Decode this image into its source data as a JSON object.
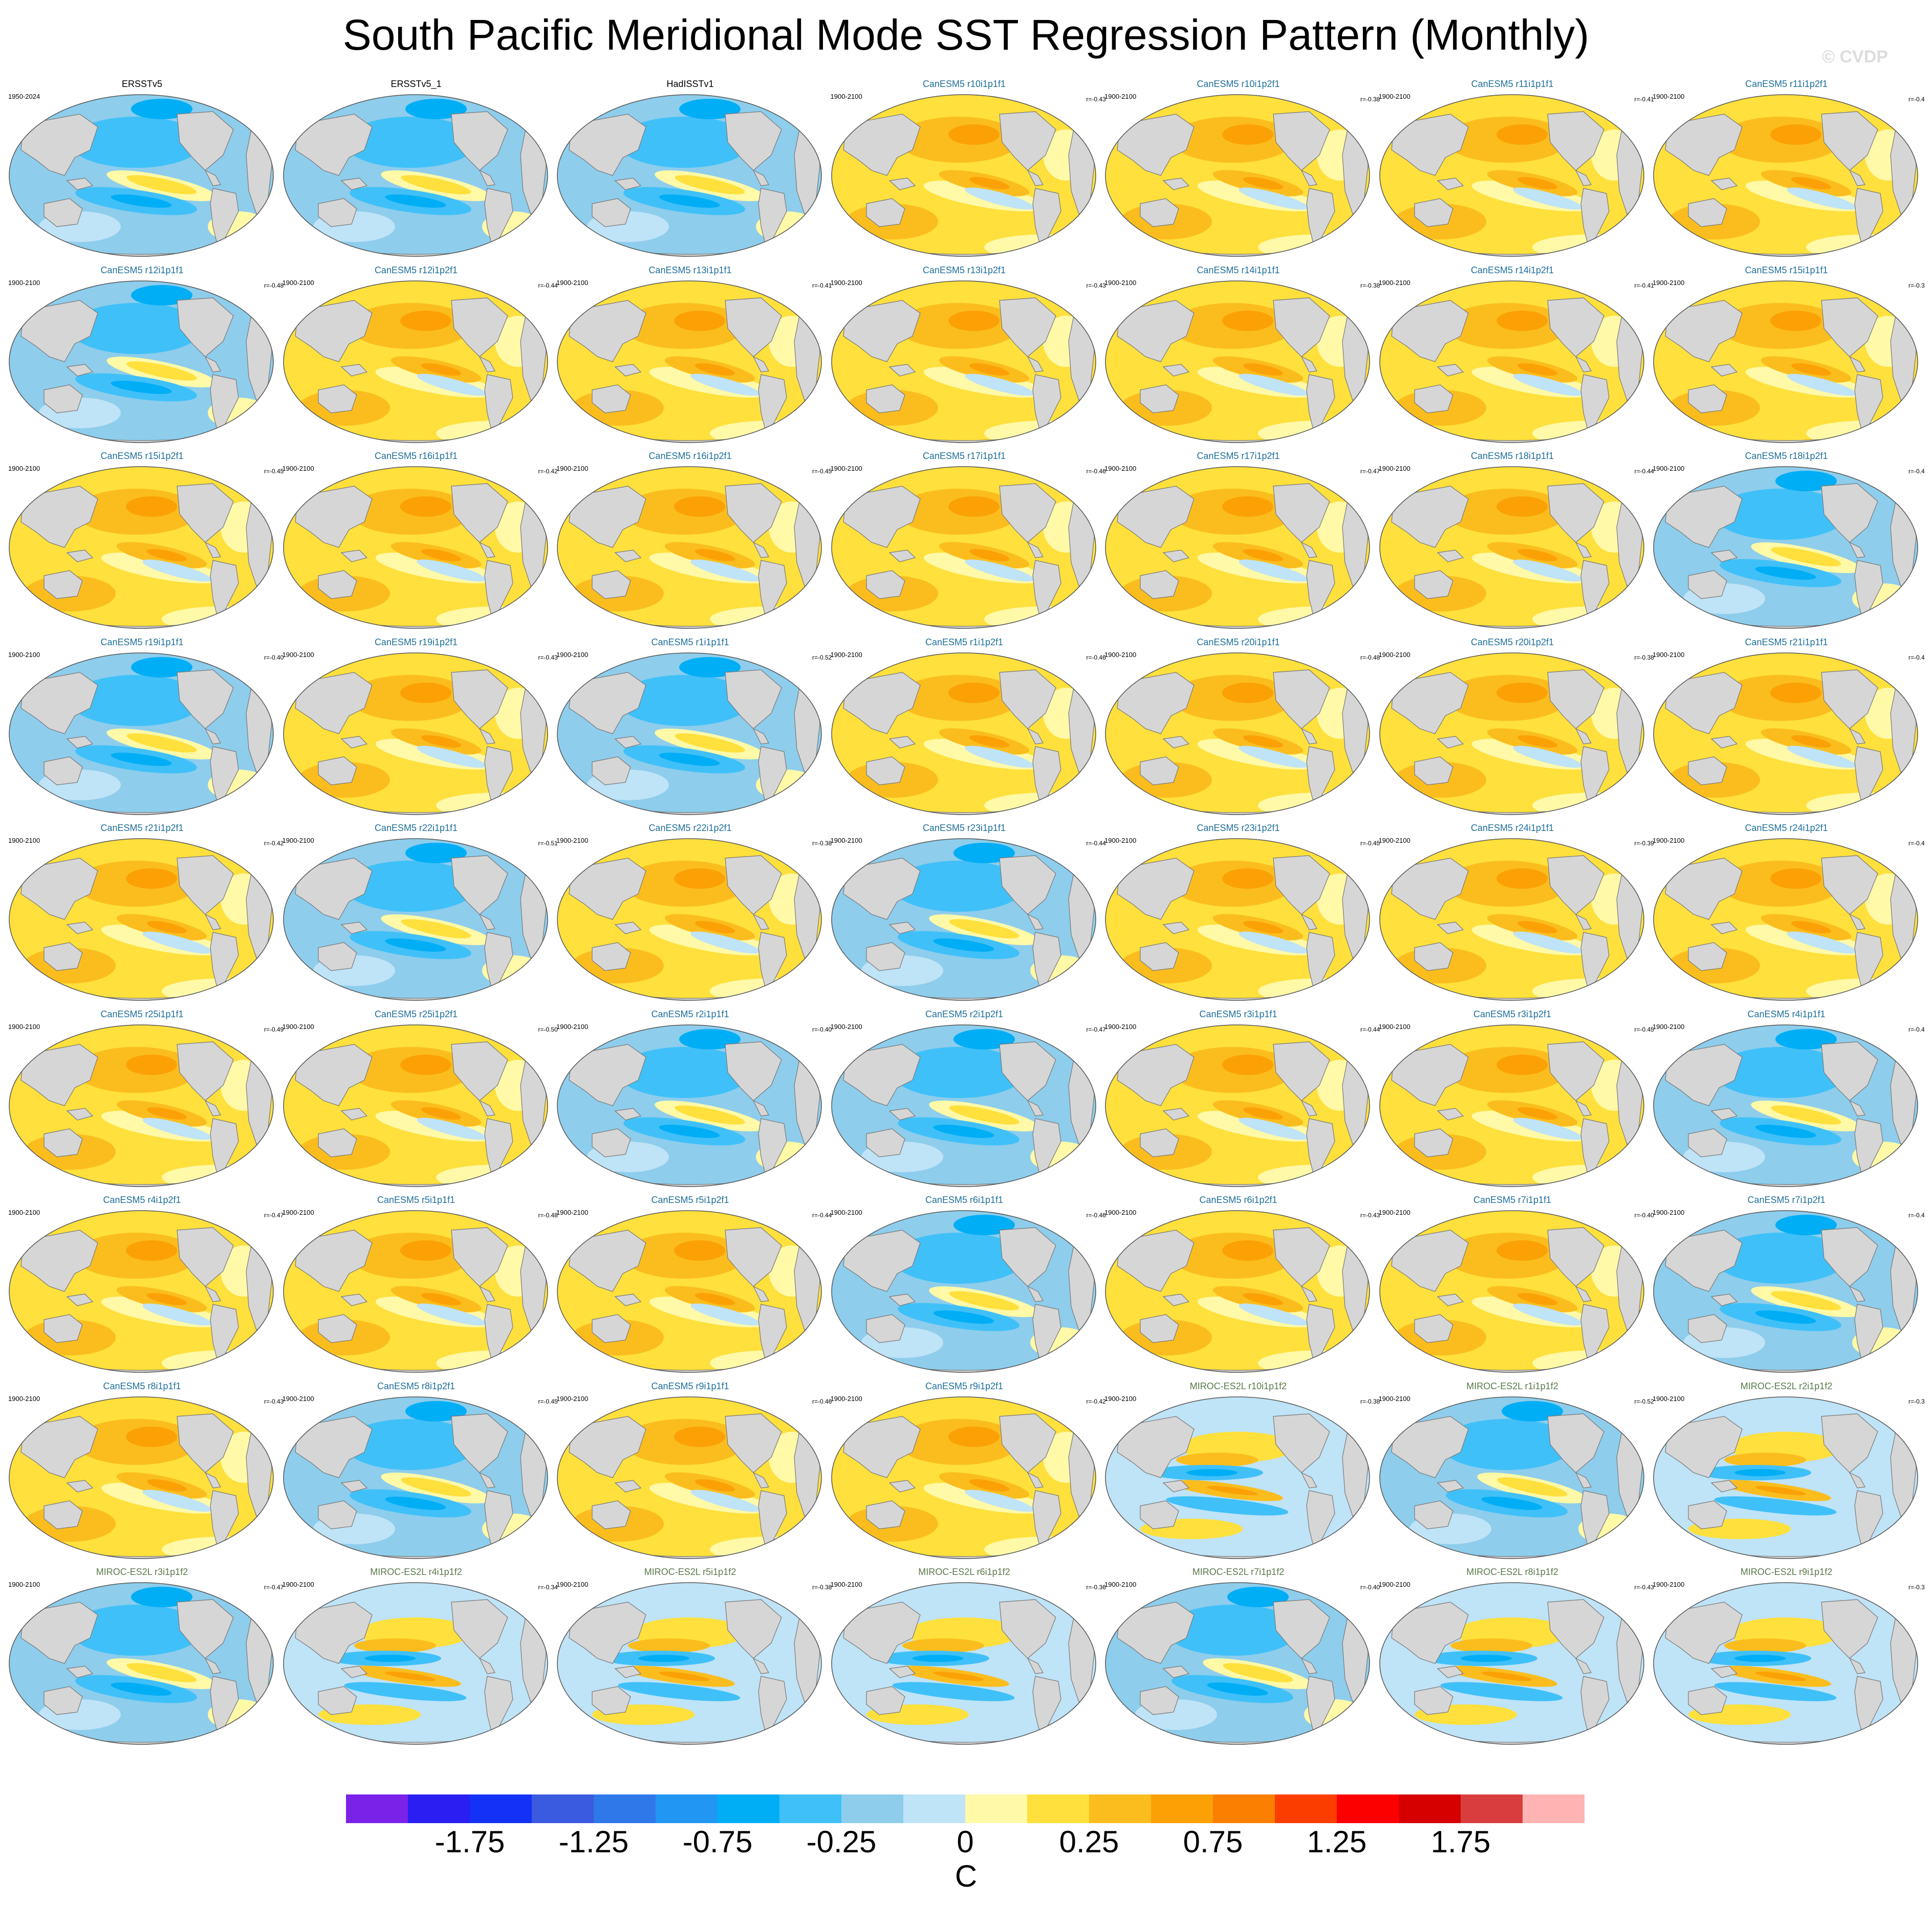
{
  "title": "South Pacific Meridional Mode SST Regression Pattern (Monthly)",
  "watermark": "© CVDP",
  "chart_data": {
    "type": "heatmap",
    "title": "South Pacific Meridional Mode SST Regression Pattern (Monthly)",
    "projection": "global map",
    "legend": "bottom",
    "colorbar": {
      "unit": "C",
      "tick_labels": [
        "-1.75",
        "-1.25",
        "-0.75",
        "-0.25",
        "0",
        "0.25",
        "0.75",
        "1.25",
        "1.75"
      ],
      "tick_values": [
        -1.75,
        -1.25,
        -0.75,
        -0.25,
        0,
        0.25,
        0.75,
        1.25,
        1.75
      ],
      "colors": [
        "#7b22e8",
        "#2a1ef0",
        "#1432f5",
        "#3a5ae0",
        "#2e78ea",
        "#2196f3",
        "#00aef5",
        "#40c0f8",
        "#8ecdec",
        "#bfe3f7",
        "#fff9a8",
        "#ffe03c",
        "#fbbd1e",
        "#fba106",
        "#fb7f00",
        "#fc3d00",
        "#fc0000",
        "#d60000",
        "#d93d3d",
        "#ffb3b3"
      ]
    },
    "panels": [
      {
        "name": "ERSSTv5",
        "period": "1950-2024",
        "corr": "",
        "model": "obs",
        "sign": "neg"
      },
      {
        "name": "ERSSTv5_1",
        "period": "",
        "corr": "",
        "model": "obs",
        "sign": "neg"
      },
      {
        "name": "HadISSTv1",
        "period": "",
        "corr": "",
        "model": "obs",
        "sign": "neg"
      },
      {
        "name": "CanESM5 r10i1p1f1",
        "period": "1900-2100",
        "corr": "r=-0.43",
        "model": "CanESM5",
        "sign": "pos"
      },
      {
        "name": "CanESM5 r10i1p2f1",
        "period": "1900-2100",
        "corr": "r=-0.38",
        "model": "CanESM5",
        "sign": "pos"
      },
      {
        "name": "CanESM5 r11i1p1f1",
        "period": "1900-2100",
        "corr": "r=-0.41",
        "model": "CanESM5",
        "sign": "pos"
      },
      {
        "name": "CanESM5 r11i1p2f1",
        "period": "1900-2100",
        "corr": "r=-0.4",
        "model": "CanESM5",
        "sign": "pos"
      },
      {
        "name": "CanESM5 r12i1p1f1",
        "period": "1900-2100",
        "corr": "r=-0.48",
        "model": "CanESM5",
        "sign": "neg"
      },
      {
        "name": "CanESM5 r12i1p2f1",
        "period": "1900-2100",
        "corr": "r=-0.44",
        "model": "CanESM5",
        "sign": "pos"
      },
      {
        "name": "CanESM5 r13i1p1f1",
        "period": "1900-2100",
        "corr": "r=-0.41",
        "model": "CanESM5",
        "sign": "pos"
      },
      {
        "name": "CanESM5 r13i1p2f1",
        "period": "1900-2100",
        "corr": "r=-0.43",
        "model": "CanESM5",
        "sign": "pos"
      },
      {
        "name": "CanESM5 r14i1p1f1",
        "period": "1900-2100",
        "corr": "r=-0.38",
        "model": "CanESM5",
        "sign": "pos"
      },
      {
        "name": "CanESM5 r14i1p2f1",
        "period": "1900-2100",
        "corr": "r=-0.41",
        "model": "CanESM5",
        "sign": "pos"
      },
      {
        "name": "CanESM5 r15i1p1f1",
        "period": "1900-2100",
        "corr": "r=-0.3",
        "model": "CanESM5",
        "sign": "pos"
      },
      {
        "name": "CanESM5 r15i1p2f1",
        "period": "1900-2100",
        "corr": "r=-0.45",
        "model": "CanESM5",
        "sign": "pos"
      },
      {
        "name": "CanESM5 r16i1p1f1",
        "period": "1900-2100",
        "corr": "r=-0.42",
        "model": "CanESM5",
        "sign": "pos"
      },
      {
        "name": "CanESM5 r16i1p2f1",
        "period": "1900-2100",
        "corr": "r=-0.45",
        "model": "CanESM5",
        "sign": "pos"
      },
      {
        "name": "CanESM5 r17i1p1f1",
        "period": "1900-2100",
        "corr": "r=-0.46",
        "model": "CanESM5",
        "sign": "pos"
      },
      {
        "name": "CanESM5 r17i1p2f1",
        "period": "1900-2100",
        "corr": "r=-0.47",
        "model": "CanESM5",
        "sign": "pos"
      },
      {
        "name": "CanESM5 r18i1p1f1",
        "period": "1900-2100",
        "corr": "r=-0.44",
        "model": "CanESM5",
        "sign": "pos"
      },
      {
        "name": "CanESM5 r18i1p2f1",
        "period": "1900-2100",
        "corr": "r=-0.4",
        "model": "CanESM5",
        "sign": "neg"
      },
      {
        "name": "CanESM5 r19i1p1f1",
        "period": "1900-2100",
        "corr": "r=-0.40",
        "model": "CanESM5",
        "sign": "neg"
      },
      {
        "name": "CanESM5 r19i1p2f1",
        "period": "1900-2100",
        "corr": "r=-0.43",
        "model": "CanESM5",
        "sign": "pos"
      },
      {
        "name": "CanESM5 r1i1p1f1",
        "period": "1900-2100",
        "corr": "r=-0.52",
        "model": "CanESM5",
        "sign": "neg"
      },
      {
        "name": "CanESM5 r1i1p2f1",
        "period": "1900-2100",
        "corr": "r=-0.46",
        "model": "CanESM5",
        "sign": "pos"
      },
      {
        "name": "CanESM5 r20i1p1f1",
        "period": "1900-2100",
        "corr": "r=-0.48",
        "model": "CanESM5",
        "sign": "pos"
      },
      {
        "name": "CanESM5 r20i1p2f1",
        "period": "1900-2100",
        "corr": "r=-0.38",
        "model": "CanESM5",
        "sign": "pos"
      },
      {
        "name": "CanESM5 r21i1p1f1",
        "period": "1900-2100",
        "corr": "r=-0.4",
        "model": "CanESM5",
        "sign": "pos"
      },
      {
        "name": "CanESM5 r21i1p2f1",
        "period": "1900-2100",
        "corr": "r=-0.42",
        "model": "CanESM5",
        "sign": "pos"
      },
      {
        "name": "CanESM5 r22i1p1f1",
        "period": "1900-2100",
        "corr": "r=-0.51",
        "model": "CanESM5",
        "sign": "neg"
      },
      {
        "name": "CanESM5 r22i1p2f1",
        "period": "1900-2100",
        "corr": "r=-0.38",
        "model": "CanESM5",
        "sign": "pos"
      },
      {
        "name": "CanESM5 r23i1p1f1",
        "period": "1900-2100",
        "corr": "r=-0.44",
        "model": "CanESM5",
        "sign": "neg"
      },
      {
        "name": "CanESM5 r23i1p2f1",
        "period": "1900-2100",
        "corr": "r=-0.45",
        "model": "CanESM5",
        "sign": "pos"
      },
      {
        "name": "CanESM5 r24i1p1f1",
        "period": "1900-2100",
        "corr": "r=-0.39",
        "model": "CanESM5",
        "sign": "pos"
      },
      {
        "name": "CanESM5 r24i1p2f1",
        "period": "1900-2100",
        "corr": "r=-0.4",
        "model": "CanESM5",
        "sign": "pos"
      },
      {
        "name": "CanESM5 r25i1p1f1",
        "period": "1900-2100",
        "corr": "r=-0.49",
        "model": "CanESM5",
        "sign": "pos"
      },
      {
        "name": "CanESM5 r25i1p2f1",
        "period": "1900-2100",
        "corr": "r=-0.50",
        "model": "CanESM5",
        "sign": "pos"
      },
      {
        "name": "CanESM5 r2i1p1f1",
        "period": "1900-2100",
        "corr": "r=-0.40",
        "model": "CanESM5",
        "sign": "neg"
      },
      {
        "name": "CanESM5 r2i1p2f1",
        "period": "1900-2100",
        "corr": "r=-0.47",
        "model": "CanESM5",
        "sign": "neg"
      },
      {
        "name": "CanESM5 r3i1p1f1",
        "period": "1900-2100",
        "corr": "r=-0.44",
        "model": "CanESM5",
        "sign": "pos"
      },
      {
        "name": "CanESM5 r3i1p2f1",
        "period": "1900-2100",
        "corr": "r=-0.45",
        "model": "CanESM5",
        "sign": "pos"
      },
      {
        "name": "CanESM5 r4i1p1f1",
        "period": "1900-2100",
        "corr": "r=-0.4",
        "model": "CanESM5",
        "sign": "neg"
      },
      {
        "name": "CanESM5 r4i1p2f1",
        "period": "1900-2100",
        "corr": "r=-0.47",
        "model": "CanESM5",
        "sign": "pos"
      },
      {
        "name": "CanESM5 r5i1p1f1",
        "period": "1900-2100",
        "corr": "r=-0.48",
        "model": "CanESM5",
        "sign": "pos"
      },
      {
        "name": "CanESM5 r5i1p2f1",
        "period": "1900-2100",
        "corr": "r=-0.44",
        "model": "CanESM5",
        "sign": "pos"
      },
      {
        "name": "CanESM5 r6i1p1f1",
        "period": "1900-2100",
        "corr": "r=-0.46",
        "model": "CanESM5",
        "sign": "neg"
      },
      {
        "name": "CanESM5 r6i1p2f1",
        "period": "1900-2100",
        "corr": "r=-0.43",
        "model": "CanESM5",
        "sign": "pos"
      },
      {
        "name": "CanESM5 r7i1p1f1",
        "period": "1900-2100",
        "corr": "r=-0.40",
        "model": "CanESM5",
        "sign": "pos"
      },
      {
        "name": "CanESM5 r7i1p2f1",
        "period": "1900-2100",
        "corr": "r=-0.4",
        "model": "CanESM5",
        "sign": "neg"
      },
      {
        "name": "CanESM5 r8i1p1f1",
        "period": "1900-2100",
        "corr": "r=-0.43",
        "model": "CanESM5",
        "sign": "pos"
      },
      {
        "name": "CanESM5 r8i1p2f1",
        "period": "1900-2100",
        "corr": "r=-0.45",
        "model": "CanESM5",
        "sign": "neg"
      },
      {
        "name": "CanESM5 r9i1p1f1",
        "period": "1900-2100",
        "corr": "r=-0.46",
        "model": "CanESM5",
        "sign": "pos"
      },
      {
        "name": "CanESM5 r9i1p2f1",
        "period": "1900-2100",
        "corr": "r=-0.42",
        "model": "CanESM5",
        "sign": "pos"
      },
      {
        "name": "MIROC-ES2L r10i1p1f2",
        "period": "1900-2100",
        "corr": "r=-0.38",
        "model": "MIROC-ES2L",
        "sign": "mix"
      },
      {
        "name": "MIROC-ES2L r1i1p1f2",
        "period": "1900-2100",
        "corr": "r=-0.52",
        "model": "MIROC-ES2L",
        "sign": "neg"
      },
      {
        "name": "MIROC-ES2L r2i1p1f2",
        "period": "1900-2100",
        "corr": "r=-0.3",
        "model": "MIROC-ES2L",
        "sign": "mix"
      },
      {
        "name": "MIROC-ES2L r3i1p1f2",
        "period": "1900-2100",
        "corr": "r=-0.47",
        "model": "MIROC-ES2L",
        "sign": "neg"
      },
      {
        "name": "MIROC-ES2L r4i1p1f2",
        "period": "1900-2100",
        "corr": "r=-0.34",
        "model": "MIROC-ES2L",
        "sign": "mix"
      },
      {
        "name": "MIROC-ES2L r5i1p1f2",
        "period": "1900-2100",
        "corr": "r=-0.38",
        "model": "MIROC-ES2L",
        "sign": "mix"
      },
      {
        "name": "MIROC-ES2L r6i1p1f2",
        "period": "1900-2100",
        "corr": "r=-0.36",
        "model": "MIROC-ES2L",
        "sign": "mix"
      },
      {
        "name": "MIROC-ES2L r7i1p1f2",
        "period": "1900-2100",
        "corr": "r=-0.40",
        "model": "MIROC-ES2L",
        "sign": "neg"
      },
      {
        "name": "MIROC-ES2L r8i1p1f2",
        "period": "1900-2100",
        "corr": "r=-0.43",
        "model": "MIROC-ES2L",
        "sign": "mix"
      },
      {
        "name": "MIROC-ES2L r9i1p1f2",
        "period": "1900-2100",
        "corr": "r=-0.3",
        "model": "MIROC-ES2L",
        "sign": "mix"
      }
    ]
  },
  "colors": {
    "title_obs": "#000000",
    "title_CanESM5": "#1f6f9a",
    "title_MIROC-ES2L": "#5a7a4a",
    "land": "#d6d6d6",
    "coast": "#777777"
  }
}
